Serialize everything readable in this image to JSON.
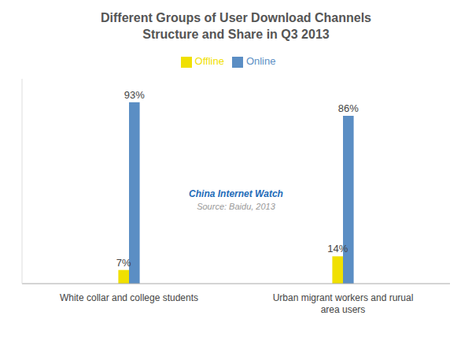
{
  "chart_data": {
    "type": "bar",
    "title": "Different Groups of User Download Channels\nStructure and Share in Q3 2013",
    "categories": [
      "White collar and college students",
      "Urban migrant workers and rurual\narea users"
    ],
    "series": [
      {
        "name": "Online",
        "color": "#5B8EC4",
        "values": [
          93,
          86
        ],
        "value_labels": [
          "93%",
          "86%"
        ]
      },
      {
        "name": "Offline",
        "color": "#F0E000",
        "values": [
          7,
          14
        ],
        "value_labels": [
          "7%",
          "14%"
        ]
      }
    ],
    "ylim": [
      0,
      105
    ],
    "legend": "top",
    "data_labels": true,
    "tick_labels": "x",
    "grid": false,
    "annotations": [
      {
        "text": "China Internet Watch",
        "color": "#1E6BB8"
      },
      {
        "text": "Source: Baidu, 2013",
        "color": "#999999"
      }
    ]
  }
}
